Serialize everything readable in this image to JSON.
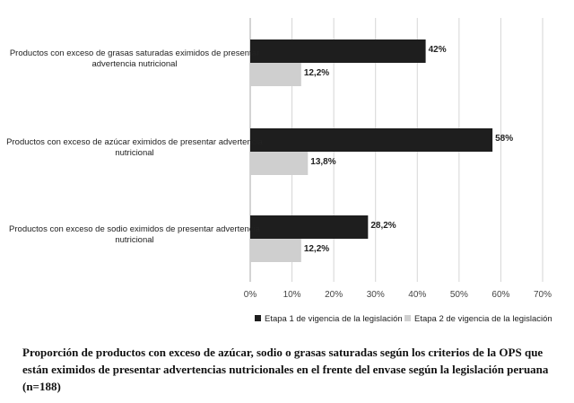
{
  "chart_data": {
    "type": "bar",
    "orientation": "horizontal",
    "categories": [
      [
        "Productos con exceso de grasas saturadas eximidos de presentar",
        "advertencia nutricional"
      ],
      [
        "Productos con exceso de azúcar eximidos de presentar advertencia",
        "nutricional"
      ],
      [
        "Productos con exceso de sodio eximidos  de presentar advertencia",
        "nutricional"
      ]
    ],
    "series": [
      {
        "name": "Etapa 1 de vigencia de la legislación",
        "values": [
          42,
          58,
          28.2
        ],
        "labels": [
          "42%",
          "58%",
          "28,2%"
        ],
        "color": "#1e1e1e"
      },
      {
        "name": "Etapa 2 de vigencia de la legislación",
        "values": [
          12.2,
          13.8,
          12.2
        ],
        "labels": [
          "12,2%",
          "13,8%",
          "12,2%"
        ],
        "color": "#cfcfcf"
      }
    ],
    "xlim": [
      0,
      70
    ],
    "xticks": [
      "0%",
      "10%",
      "20%",
      "30%",
      "40%",
      "50%",
      "60%",
      "70%"
    ],
    "grid": true,
    "legend_position": "bottom",
    "caption": "Proporción de productos con exceso de azúcar, sodio o grasas saturadas según los criterios de la OPS que están eximidos de presentar advertencias nutricionales en el frente del envase según la legislación peruana (n=188)"
  }
}
